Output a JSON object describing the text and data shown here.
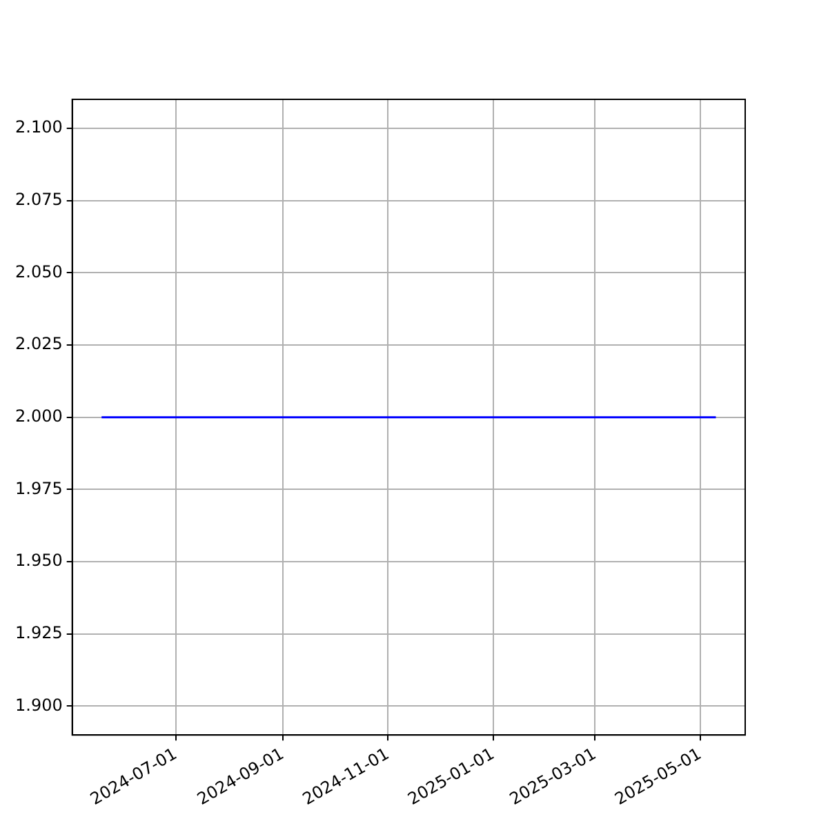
{
  "chart_data": {
    "type": "line",
    "x": [
      "2024-05-19",
      "2025-05-10"
    ],
    "series": [
      {
        "color": "#0000ff",
        "values": [
          2.0,
          2.0
        ]
      }
    ],
    "xlim": [
      "2024-05-02",
      "2025-05-27"
    ],
    "xticks": [
      "2024-07-01",
      "2024-09-01",
      "2024-11-01",
      "2025-01-01",
      "2025-03-01",
      "2025-05-01"
    ],
    "ylim": [
      1.89,
      2.11
    ],
    "yticks": [
      {
        "value": 1.9,
        "label": "1.900"
      },
      {
        "value": 1.925,
        "label": "1.925"
      },
      {
        "value": 1.95,
        "label": "1.950"
      },
      {
        "value": 1.975,
        "label": "1.975"
      },
      {
        "value": 2.0,
        "label": "2.000"
      },
      {
        "value": 2.025,
        "label": "2.025"
      },
      {
        "value": 2.05,
        "label": "2.050"
      },
      {
        "value": 2.075,
        "label": "2.075"
      },
      {
        "value": 2.1,
        "label": "2.100"
      }
    ],
    "grid": true
  }
}
